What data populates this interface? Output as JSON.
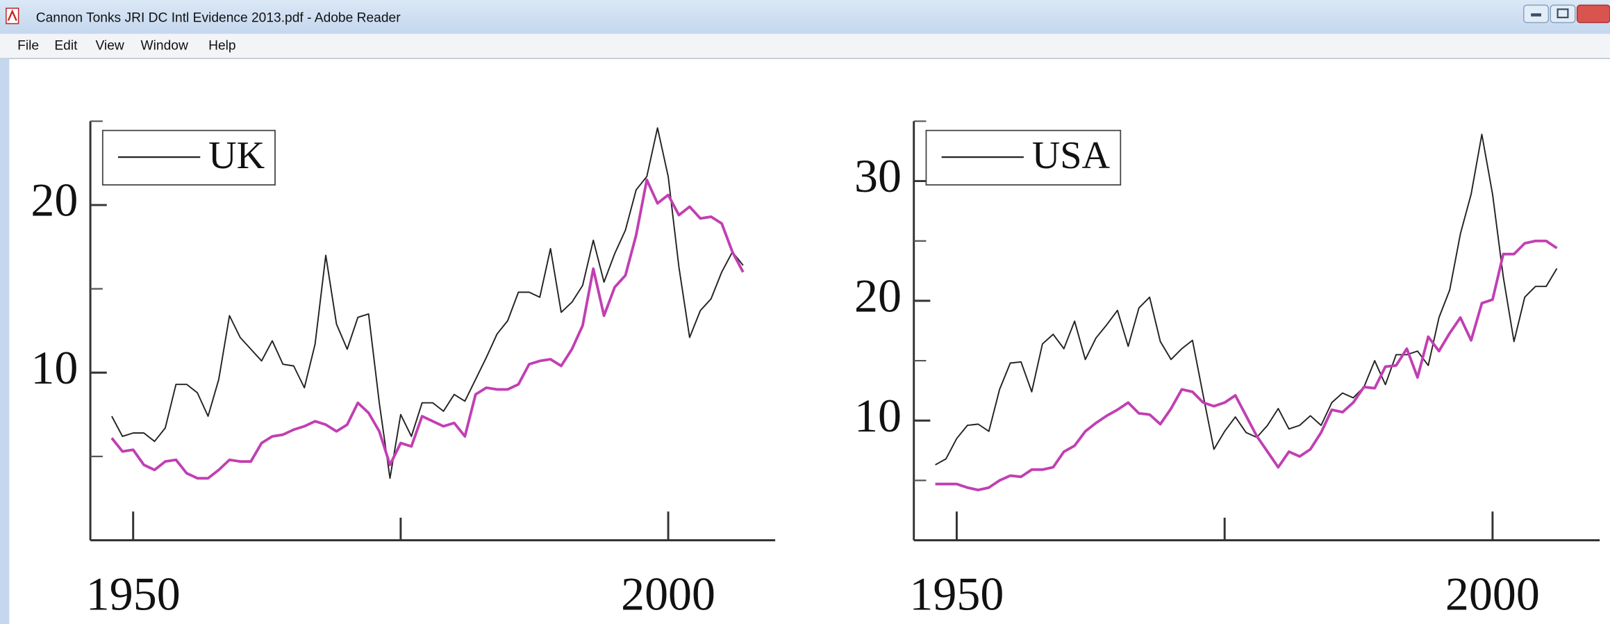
{
  "window": {
    "title": "Cannon Tonks JRI DC Intl Evidence 2013.pdf - Adobe Reader",
    "menu": [
      "File",
      "Edit",
      "View",
      "Window",
      "Help"
    ]
  },
  "chart_data": [
    {
      "type": "line",
      "x": [
        1948,
        1949,
        1950,
        1951,
        1952,
        1953,
        1954,
        1955,
        1956,
        1957,
        1958,
        1959,
        1960,
        1961,
        1962,
        1963,
        1964,
        1965,
        1966,
        1967,
        1968,
        1969,
        1970,
        1971,
        1972,
        1973,
        1974,
        1975,
        1976,
        1977,
        1978,
        1979,
        1980,
        1981,
        1982,
        1983,
        1984,
        1985,
        1986,
        1987,
        1988,
        1989,
        1990,
        1991,
        1992,
        1993,
        1994,
        1995,
        1996,
        1997,
        1998,
        1999,
        2000,
        2001,
        2002,
        2003,
        2004,
        2005,
        2006,
        2007
      ],
      "series": [
        {
          "name": "UK",
          "color": "#222222",
          "values": [
            7.4,
            6.2,
            6.4,
            6.4,
            5.9,
            6.7,
            9.3,
            9.3,
            8.8,
            7.4,
            9.6,
            13.4,
            12.1,
            11.4,
            10.7,
            11.9,
            10.5,
            10.4,
            9.1,
            11.7,
            17.0,
            12.9,
            11.4,
            13.3,
            13.5,
            8.2,
            3.7,
            7.5,
            6.2,
            8.2,
            8.2,
            7.7,
            8.7,
            8.3,
            9.6,
            10.9,
            12.3,
            13.1,
            14.8,
            14.8,
            14.5,
            17.4,
            13.6,
            14.2,
            15.2,
            17.9,
            15.4,
            17.1,
            18.5,
            20.9,
            21.7,
            24.6,
            21.7,
            16.3,
            12.1,
            13.7,
            14.4,
            16.0,
            17.2,
            16.4
          ]
        },
        {
          "color": "#c13fb2",
          "values": [
            6.1,
            5.3,
            5.4,
            4.5,
            4.2,
            4.7,
            4.8,
            4.0,
            3.7,
            3.7,
            4.2,
            4.8,
            4.7,
            4.7,
            5.8,
            6.2,
            6.3,
            6.6,
            6.8,
            7.1,
            6.9,
            6.5,
            6.9,
            8.2,
            7.6,
            6.5,
            4.5,
            5.8,
            5.6,
            7.4,
            7.1,
            6.8,
            7.0,
            6.2,
            8.7,
            9.1,
            9.0,
            9.0,
            9.3,
            10.5,
            10.7,
            10.8,
            10.4,
            11.4,
            12.8,
            16.2,
            13.4,
            15.1,
            15.8,
            18.2,
            21.5,
            20.1,
            20.6,
            19.4,
            19.9,
            19.2,
            19.3,
            18.9,
            17.2,
            16.0
          ]
        }
      ],
      "xlim": [
        1946,
        2010
      ],
      "xticks": [
        1950,
        2000
      ],
      "xminorticks": [
        1975
      ],
      "ylim": [
        0,
        25
      ],
      "yticks": [
        10,
        20
      ],
      "yminorticks": [
        5,
        15,
        25
      ],
      "legend": "upper left"
    },
    {
      "type": "line",
      "x": [
        1948,
        1949,
        1950,
        1951,
        1952,
        1953,
        1954,
        1955,
        1956,
        1957,
        1958,
        1959,
        1960,
        1961,
        1962,
        1963,
        1964,
        1965,
        1966,
        1967,
        1968,
        1969,
        1970,
        1971,
        1972,
        1973,
        1974,
        1975,
        1976,
        1977,
        1978,
        1979,
        1980,
        1981,
        1982,
        1983,
        1984,
        1985,
        1986,
        1987,
        1988,
        1989,
        1990,
        1991,
        1992,
        1993,
        1994,
        1995,
        1996,
        1997,
        1998,
        1999,
        2000,
        2001,
        2002,
        2003,
        2004,
        2005,
        2006
      ],
      "series": [
        {
          "name": "USA",
          "color": "#222222",
          "values": [
            6.3,
            6.8,
            8.5,
            9.6,
            9.7,
            9.1,
            12.6,
            14.8,
            14.9,
            12.4,
            16.4,
            17.2,
            16.0,
            18.3,
            15.1,
            16.9,
            18.0,
            19.2,
            16.2,
            19.4,
            20.3,
            16.6,
            15.1,
            16.0,
            16.7,
            12.1,
            7.6,
            9.1,
            10.3,
            9.0,
            8.6,
            9.6,
            11.0,
            9.3,
            9.6,
            10.4,
            9.6,
            11.5,
            12.3,
            11.9,
            12.8,
            15.0,
            13.0,
            15.5,
            15.5,
            15.8,
            14.6,
            18.6,
            20.9,
            25.6,
            28.9,
            33.9,
            28.9,
            22.0,
            16.6,
            20.3,
            21.2,
            21.2,
            22.7
          ]
        },
        {
          "color": "#c13fb2",
          "values": [
            4.7,
            4.7,
            4.7,
            4.4,
            4.2,
            4.4,
            5.0,
            5.4,
            5.3,
            5.9,
            5.9,
            6.1,
            7.4,
            7.9,
            9.1,
            9.8,
            10.4,
            10.9,
            11.5,
            10.6,
            10.5,
            9.7,
            11.0,
            12.6,
            12.4,
            11.5,
            11.2,
            11.5,
            12.1,
            10.4,
            8.7,
            7.4,
            6.1,
            7.4,
            7.0,
            7.6,
            9.0,
            10.9,
            10.7,
            11.5,
            12.8,
            12.7,
            14.5,
            14.6,
            16.0,
            13.6,
            17.0,
            15.8,
            17.3,
            18.6,
            16.7,
            19.8,
            20.1,
            23.9,
            23.9,
            24.8,
            25.0,
            25.0,
            24.4
          ]
        }
      ],
      "xlim": [
        1946,
        2010
      ],
      "xticks": [
        1950,
        2000
      ],
      "xminorticks": [
        1975
      ],
      "ylim": [
        0,
        35
      ],
      "yticks": [
        10,
        20,
        30
      ],
      "yminorticks": [
        5,
        15,
        25,
        35
      ],
      "legend": "upper left"
    }
  ]
}
